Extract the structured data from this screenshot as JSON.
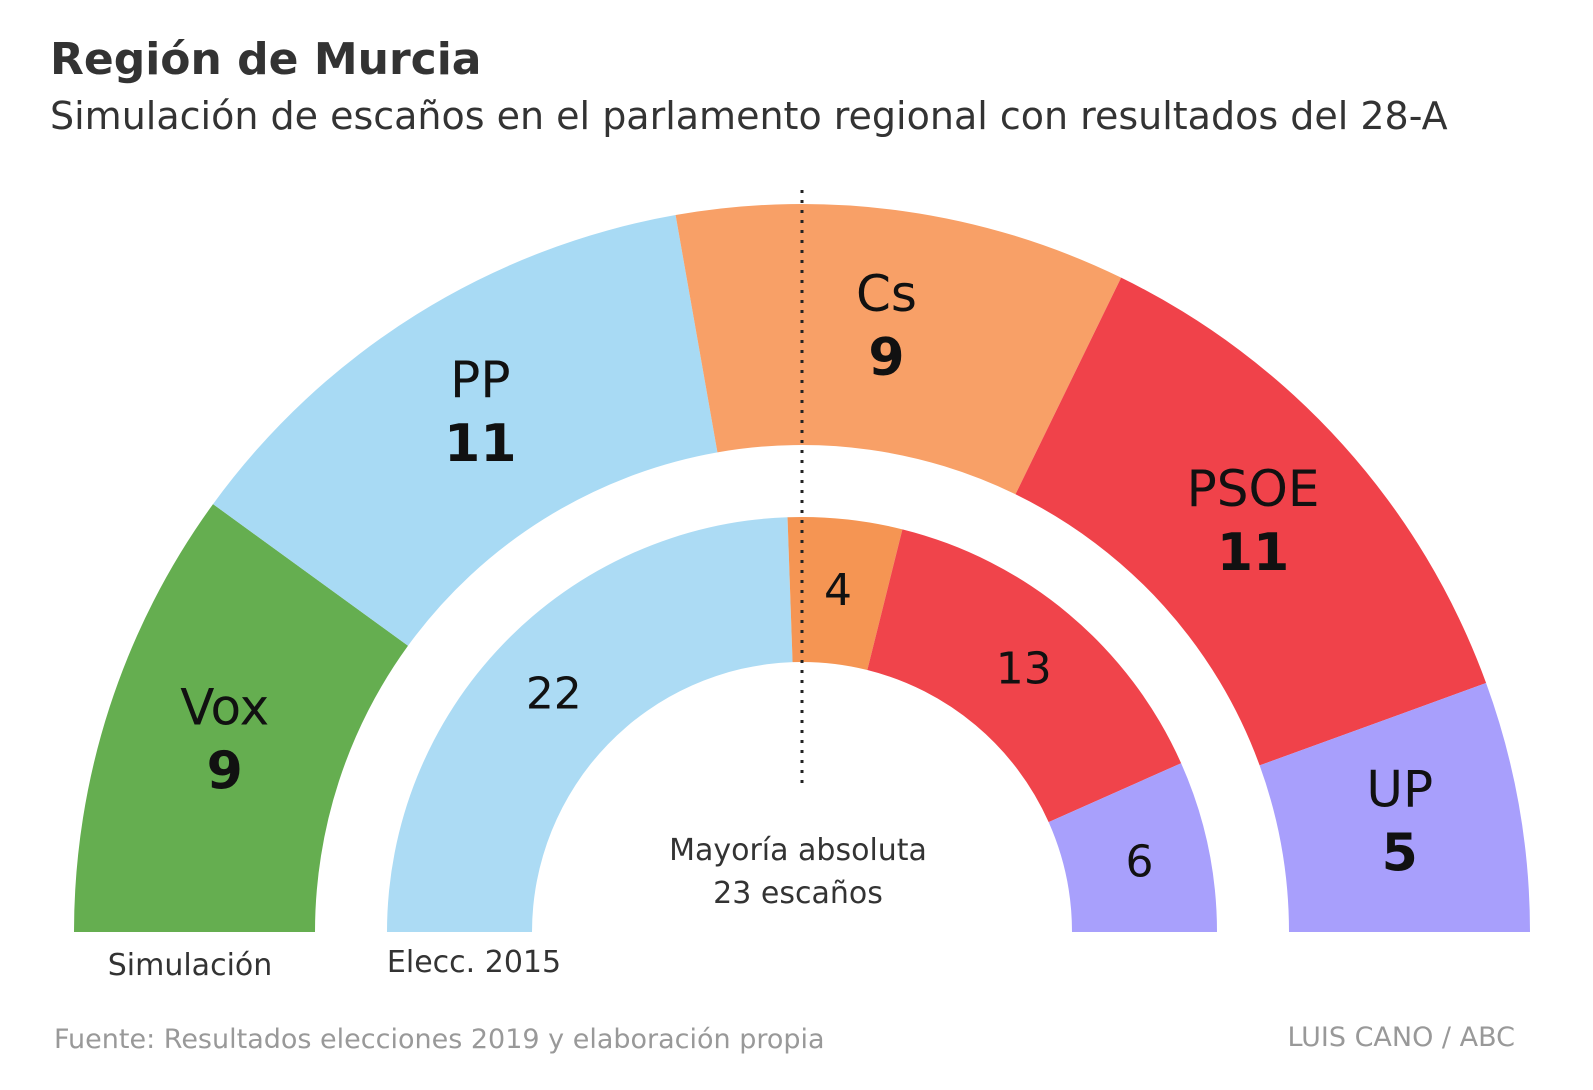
{
  "title": "Región de Murcia",
  "subtitle": "Simulación de escaños en el parlamento regional con resultados del 28-A",
  "source": "Fuente: Resultados elecciones 2019 y elaboración propia",
  "credit": "LUIS CANO / ABC",
  "chart_data": {
    "type": "parliament",
    "total_seats": 45,
    "majority": {
      "label_line1": "Mayoría absoluta",
      "label_line2": "23 escaños",
      "seats": 23
    },
    "rings": [
      {
        "name": "Simulación",
        "parties": [
          {
            "party": "Vox",
            "seats": 9,
            "color": "#65ae50"
          },
          {
            "party": "PP",
            "seats": 11,
            "color": "#a8daf4"
          },
          {
            "party": "Cs",
            "seats": 9,
            "color": "#f8a067"
          },
          {
            "party": "PSOE",
            "seats": 11,
            "color": "#f0424a"
          },
          {
            "party": "UP",
            "seats": 5,
            "color": "#a89ffc"
          }
        ]
      },
      {
        "name": "Elecc. 2015",
        "parties": [
          {
            "party": "PP",
            "seats": 22,
            "color": "#acdbf4"
          },
          {
            "party": "Cs",
            "seats": 4,
            "color": "#f59553"
          },
          {
            "party": "PSOE",
            "seats": 13,
            "color": "#f0444b"
          },
          {
            "party": "UP",
            "seats": 6,
            "color": "#a8a0fc"
          }
        ]
      }
    ]
  }
}
